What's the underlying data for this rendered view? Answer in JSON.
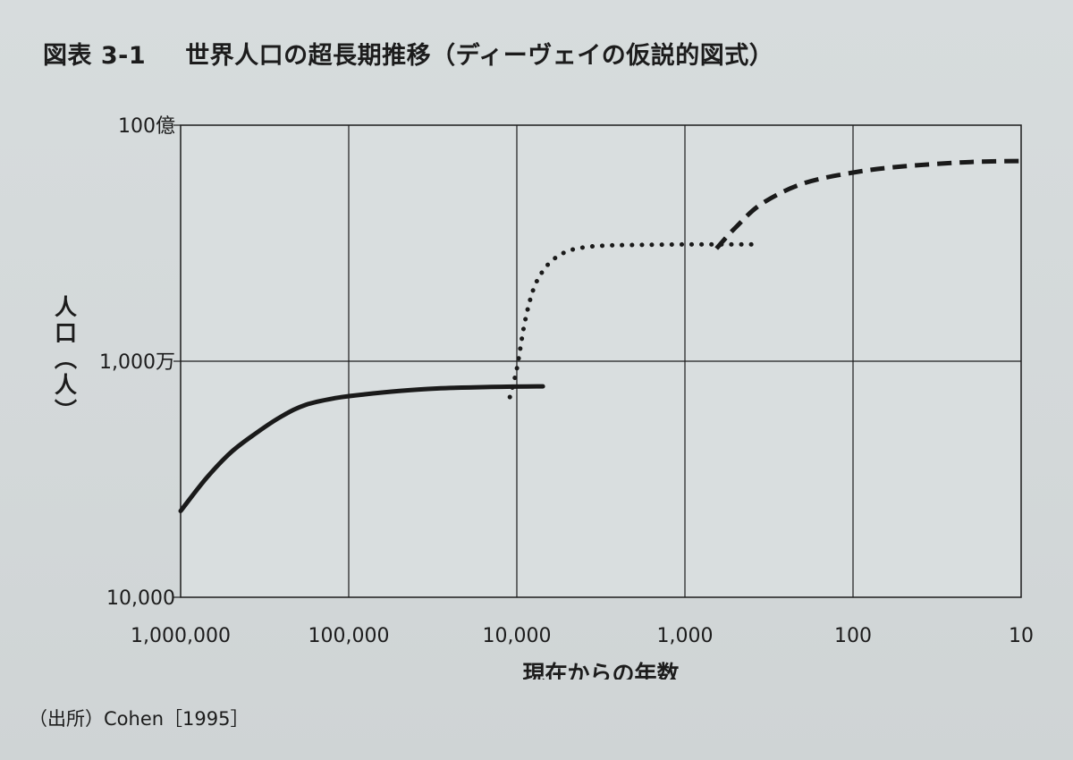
{
  "figure": {
    "title_label": "図表 3-1",
    "title_text": "世界人口の超長期推移（ディーヴェイの仮説的図式）",
    "source": "（出所）Cohen［1995］"
  },
  "chart_data": {
    "type": "line",
    "xlabel": "現在からの年数",
    "ylabel": "人口（人）",
    "x_scale": "log",
    "y_scale": "log",
    "x_reversed": true,
    "xlim": [
      1000000,
      10
    ],
    "ylim": [
      10000,
      10000000000
    ],
    "grid": true,
    "x_ticks": [
      {
        "value": 1000000,
        "label": "1,000,000"
      },
      {
        "value": 100000,
        "label": "100,000"
      },
      {
        "value": 10000,
        "label": "10,000"
      },
      {
        "value": 1000,
        "label": "1,000"
      },
      {
        "value": 100,
        "label": "100"
      },
      {
        "value": 10,
        "label": "10"
      }
    ],
    "y_ticks": [
      {
        "value": 10000,
        "label": "10,000"
      },
      {
        "value": 10000000,
        "label": "1,000万"
      },
      {
        "value": 10000000000,
        "label": "100億"
      }
    ],
    "series": [
      {
        "style": "solid",
        "x": [
          1000000,
          700000,
          500000,
          350000,
          250000,
          180000,
          120000,
          80000,
          50000,
          30000,
          15000,
          7000
        ],
        "y": [
          125000,
          330000,
          700000,
          1250000,
          2000000,
          2800000,
          3400000,
          3800000,
          4200000,
          4500000,
          4700000,
          4800000
        ]
      },
      {
        "style": "dotted",
        "x": [
          11000,
          10000,
          9000,
          8000,
          7000,
          6000,
          5000,
          4000,
          3000,
          2000,
          1000,
          500,
          400
        ],
        "y": [
          3500000,
          8000000,
          30000000,
          80000000,
          140000000,
          200000000,
          250000000,
          280000000,
          295000000,
          300000000,
          305000000,
          305000000,
          305000000
        ]
      },
      {
        "style": "dashed",
        "x": [
          650,
          500,
          350,
          200,
          100,
          50,
          20,
          10
        ],
        "y": [
          270000000,
          500000000,
          1000000000,
          1800000000,
          2500000000,
          3000000000,
          3400000000,
          3500000000
        ]
      }
    ]
  }
}
